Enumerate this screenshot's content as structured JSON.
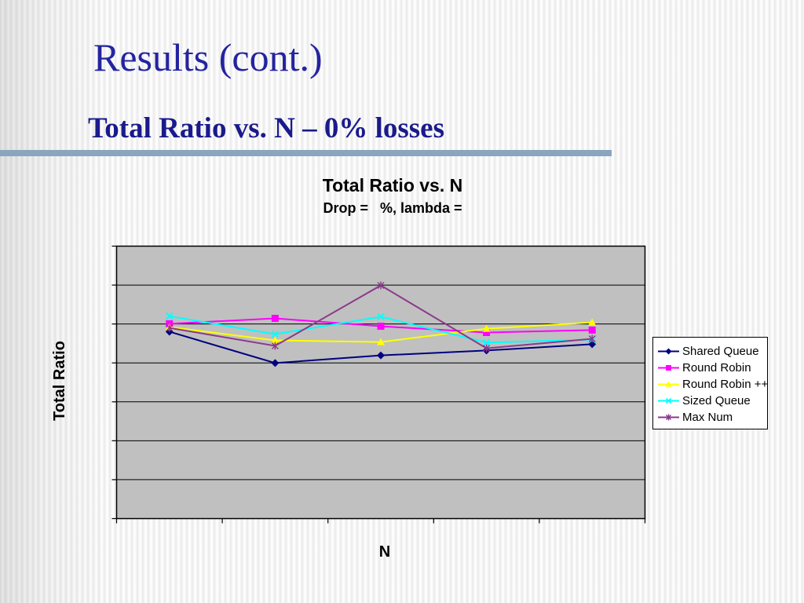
{
  "slide": {
    "title": "Results (cont.)",
    "subtitle": "Total Ratio vs. N – 0% losses"
  },
  "colors": {
    "title_blue": "#2424A0",
    "subtitle_blue": "#1A1A8C",
    "divider_blue": "#8CA5BF",
    "plot_background": "#C0C0C0",
    "gridline": "#000000",
    "legend_background": "#FFFFFF",
    "legend_border": "#000000"
  },
  "chart": {
    "title": "Total Ratio vs. N",
    "subtitle": "Drop =   %, lambda =",
    "x_axis_title": "N",
    "y_axis_title": "Total Ratio"
  },
  "chart_data": {
    "type": "line",
    "title": "Total Ratio vs. N",
    "subtitle": "Drop =   %, lambda =",
    "xlabel": "N",
    "ylabel": "Total Ratio",
    "x_tick_labels": [
      "",
      "",
      "",
      "",
      "",
      ""
    ],
    "y_tick_labels": [],
    "axis_note": "no numeric tick labels are visible on either axis; values_norm are fractions of plot height above the x-axis, read from pixels",
    "grid": true,
    "grid_divisions": 7,
    "legend_position": "right",
    "categories": [
      "",
      "",
      "",
      "",
      ""
    ],
    "series": [
      {
        "name": "Shared Queue",
        "color": "#000080",
        "marker": "diamond",
        "values_norm": [
          0.686,
          0.571,
          0.599,
          0.617,
          0.64
        ]
      },
      {
        "name": "Round Robin",
        "color": "#FF00FF",
        "marker": "square",
        "values_norm": [
          0.715,
          0.735,
          0.706,
          0.683,
          0.692
        ]
      },
      {
        "name": "Round Robin ++",
        "color": "#FFFF00",
        "marker": "triangle",
        "values_norm": [
          0.703,
          0.654,
          0.648,
          0.697,
          0.72
        ]
      },
      {
        "name": "Sized Queue",
        "color": "#00FFFF",
        "marker": "x",
        "values_norm": [
          0.743,
          0.677,
          0.741,
          0.646,
          0.657
        ]
      },
      {
        "name": "Max Num",
        "color": "#8B3A8B",
        "marker": "star",
        "values_norm": [
          0.7,
          0.634,
          0.856,
          0.625,
          0.66
        ]
      }
    ]
  }
}
